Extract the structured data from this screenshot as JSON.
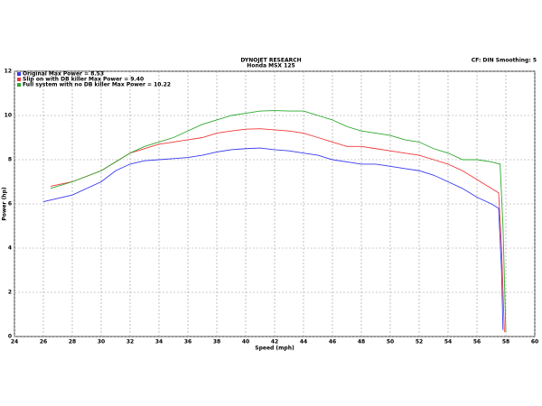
{
  "chart_data": {
    "type": "line",
    "title": "DYNOJET RESEARCH",
    "subtitle": "Honda MSX 125",
    "annotation": "CF: DIN  Smoothing: 5",
    "x_label": "Speed (mph)",
    "y_label": "Power (hp)",
    "xlim": [
      24,
      60
    ],
    "ylim": [
      0,
      12
    ],
    "xticks": [
      24,
      26,
      28,
      30,
      32,
      34,
      36,
      38,
      40,
      42,
      44,
      46,
      48,
      50,
      52,
      54,
      56,
      58,
      60
    ],
    "yticks": [
      0,
      2,
      4,
      6,
      8,
      10,
      12
    ],
    "grid": true,
    "legend": "top-left",
    "series": [
      {
        "name": "Original Max Power = 8.53",
        "color": "#3a3af0",
        "x": [
          26,
          28,
          30,
          31,
          32,
          33,
          34,
          35,
          36,
          37,
          38,
          39,
          40,
          41,
          42,
          43,
          44,
          45,
          46,
          47,
          48,
          49,
          50,
          51,
          52,
          53,
          54,
          55,
          56,
          57,
          57.5,
          57.7,
          57.8
        ],
        "values": [
          6.1,
          6.4,
          7.0,
          7.5,
          7.8,
          7.95,
          8.0,
          8.05,
          8.1,
          8.2,
          8.35,
          8.45,
          8.5,
          8.53,
          8.45,
          8.4,
          8.3,
          8.2,
          8.0,
          7.9,
          7.8,
          7.8,
          7.7,
          7.6,
          7.5,
          7.3,
          7.0,
          6.7,
          6.3,
          6.0,
          5.8,
          3,
          0.3
        ]
      },
      {
        "name": "Slip on with DB killer Max Power = 9.40",
        "color": "#f03a3a",
        "x": [
          26.5,
          28,
          30,
          32,
          34,
          35,
          36,
          37,
          38,
          39,
          40,
          41,
          42,
          43,
          44,
          45,
          46,
          47,
          48,
          49,
          50,
          51,
          52,
          53,
          54,
          55,
          56,
          57,
          57.5,
          57.7,
          57.9
        ],
        "values": [
          6.8,
          7.0,
          7.5,
          8.3,
          8.7,
          8.8,
          8.9,
          9.0,
          9.2,
          9.3,
          9.38,
          9.4,
          9.35,
          9.3,
          9.2,
          9.0,
          8.8,
          8.6,
          8.6,
          8.5,
          8.4,
          8.3,
          8.2,
          8.0,
          7.8,
          7.5,
          7.1,
          6.7,
          6.5,
          4,
          0.2
        ]
      },
      {
        "name": "Full system with no DB killer Max Power = 10.22",
        "color": "#2ea82e",
        "x": [
          26.5,
          28,
          30,
          32,
          33,
          34,
          35,
          36,
          37,
          38,
          39,
          40,
          41,
          42,
          43,
          44,
          45,
          46,
          47,
          48,
          49,
          50,
          51,
          52,
          53,
          54,
          55,
          56,
          57,
          57.6,
          57.8,
          58.0
        ],
        "values": [
          6.7,
          7.0,
          7.5,
          8.3,
          8.6,
          8.8,
          9.0,
          9.3,
          9.6,
          9.8,
          10.0,
          10.1,
          10.2,
          10.22,
          10.2,
          10.2,
          10.0,
          9.8,
          9.5,
          9.3,
          9.2,
          9.1,
          8.9,
          8.8,
          8.5,
          8.3,
          8.0,
          8.0,
          7.9,
          7.8,
          5,
          0.2
        ]
      }
    ]
  }
}
